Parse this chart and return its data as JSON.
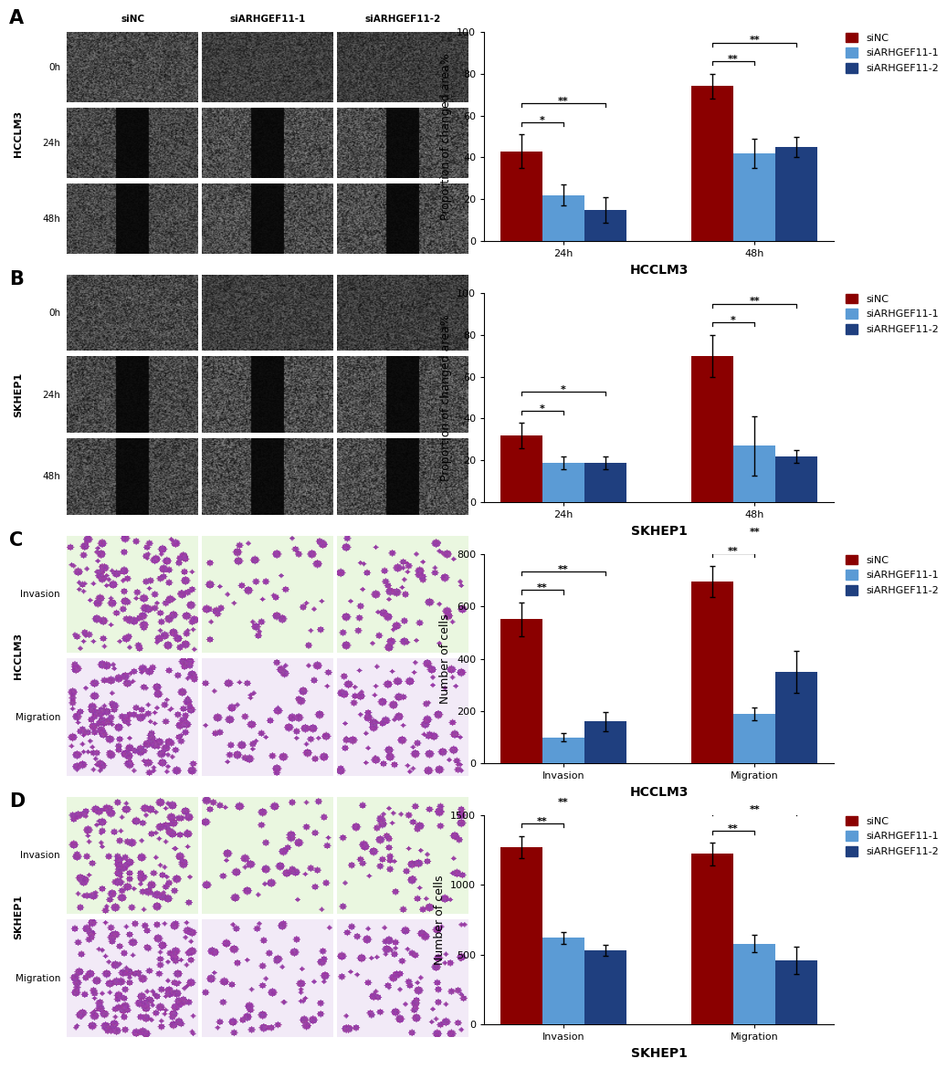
{
  "chart_A": {
    "title": "HCCLM3",
    "ylabel": "Proportion of changed area%",
    "groups": [
      "24h",
      "48h"
    ],
    "series": [
      "siNC",
      "siARHGEF11-1",
      "siARHGEF11-2"
    ],
    "values": [
      [
        43,
        22,
        15
      ],
      [
        74,
        42,
        45
      ]
    ],
    "errors": [
      [
        8,
        5,
        6
      ],
      [
        6,
        7,
        5
      ]
    ],
    "colors": [
      "#8B0000",
      "#5B9BD5",
      "#1F3F7F"
    ],
    "ylim": [
      0,
      100
    ],
    "yticks": [
      0,
      20,
      40,
      60,
      80,
      100
    ],
    "sigs_g0": [
      [
        "*",
        0,
        1
      ],
      [
        "**",
        0,
        2
      ]
    ],
    "sigs_g1": [
      [
        "**",
        0,
        1
      ],
      [
        "**",
        0,
        2
      ]
    ]
  },
  "chart_B": {
    "title": "SKHEP1",
    "ylabel": "Proportion of changed area%",
    "groups": [
      "24h",
      "48h"
    ],
    "series": [
      "siNC",
      "siARHGEF11-1",
      "siARHGEF11-2"
    ],
    "values": [
      [
        32,
        19,
        19
      ],
      [
        70,
        27,
        22
      ]
    ],
    "errors": [
      [
        6,
        3,
        3
      ],
      [
        10,
        14,
        3
      ]
    ],
    "colors": [
      "#8B0000",
      "#5B9BD5",
      "#1F3F7F"
    ],
    "ylim": [
      0,
      100
    ],
    "yticks": [
      0,
      20,
      40,
      60,
      80,
      100
    ],
    "sigs_g0": [
      [
        "*",
        0,
        1
      ],
      [
        "*",
        0,
        2
      ]
    ],
    "sigs_g1": [
      [
        "*",
        0,
        1
      ],
      [
        "**",
        0,
        2
      ]
    ]
  },
  "chart_C": {
    "title": "HCCLM3",
    "ylabel": "Number of cells",
    "groups": [
      "Invasion",
      "Migration"
    ],
    "series": [
      "siNC",
      "siARHGEF11-1",
      "siARHGEF11-2"
    ],
    "values": [
      [
        550,
        100,
        160
      ],
      [
        695,
        190,
        350
      ]
    ],
    "errors": [
      [
        65,
        15,
        35
      ],
      [
        60,
        25,
        80
      ]
    ],
    "colors": [
      "#8B0000",
      "#5B9BD5",
      "#1F3F7F"
    ],
    "ylim": [
      0,
      800
    ],
    "yticks": [
      0,
      200,
      400,
      600,
      800
    ],
    "sigs_g0": [
      [
        "**",
        0,
        1
      ],
      [
        "**",
        0,
        2
      ]
    ],
    "sigs_g1": [
      [
        "**",
        0,
        1
      ],
      [
        "**",
        0,
        2
      ]
    ]
  },
  "chart_D": {
    "title": "SKHEP1",
    "ylabel": "Number of cells",
    "groups": [
      "Invasion",
      "Migration"
    ],
    "series": [
      "siNC",
      "siARHGEF11-1",
      "siARHGEF11-2"
    ],
    "values": [
      [
        1270,
        620,
        530
      ],
      [
        1220,
        580,
        460
      ]
    ],
    "errors": [
      [
        80,
        40,
        40
      ],
      [
        80,
        60,
        100
      ]
    ],
    "colors": [
      "#8B0000",
      "#5B9BD5",
      "#1F3F7F"
    ],
    "ylim": [
      0,
      1500
    ],
    "yticks": [
      0,
      500,
      1000,
      1500
    ],
    "sigs_g0": [
      [
        "**",
        0,
        1
      ],
      [
        "**",
        0,
        2
      ]
    ],
    "sigs_g1": [
      [
        "**",
        0,
        1
      ],
      [
        "**",
        0,
        2
      ]
    ]
  },
  "bar_width": 0.22,
  "panel_label_fontsize": 15,
  "axis_label_fontsize": 9,
  "tick_fontsize": 8,
  "title_fontsize": 10,
  "legend_fontsize": 8,
  "panel_labels": [
    "A",
    "B",
    "C",
    "D"
  ],
  "bg_color": "#ffffff"
}
